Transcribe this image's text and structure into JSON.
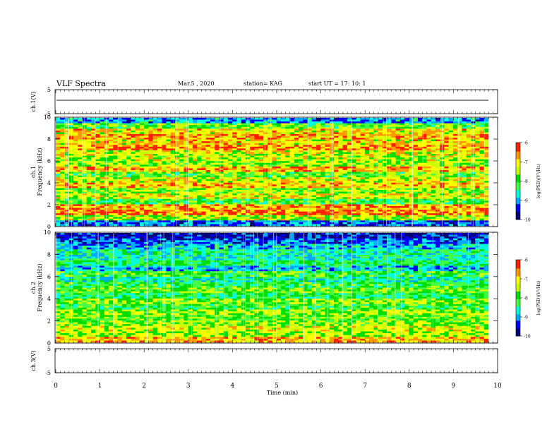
{
  "header": {
    "title": "VLF Spectra",
    "date": "Mar.5 , 2020",
    "station": "station= KAG",
    "start": "start UT = 17: 10: 1"
  },
  "chart_data": [
    {
      "type": "line",
      "panel": "ch1-waveform",
      "ylabel": "ch.1(V)",
      "ylim": [
        -5,
        5
      ],
      "yticks": [
        "5",
        "-5"
      ],
      "series": [
        {
          "values": [
            0,
            0,
            0,
            0,
            0,
            0,
            0,
            0,
            0,
            0
          ]
        }
      ],
      "note_visible": false
    },
    {
      "type": "heatmap",
      "panel": "ch1-spectrogram",
      "ylabel": "ch.1\nFrequency (kHz)",
      "ylim": [
        0,
        10
      ],
      "yticks": [
        "0",
        "2",
        "4",
        "6",
        "8",
        "10"
      ],
      "xlim": [
        0,
        9.8
      ],
      "levels": [
        0.6,
        0.7,
        0.9,
        0.62,
        0.75,
        0.65,
        0.7,
        0.85,
        0.78,
        0.8,
        0.6,
        0.5
      ],
      "band_levels_top_to_bottom": [
        0.25,
        0.55,
        0.75,
        0.82,
        0.75,
        0.85,
        0.7,
        0.65,
        0.6,
        0.8,
        0.55,
        0.7,
        0.78,
        0.6,
        0.72,
        0.5,
        0.82,
        0.88,
        0.65,
        0.2
      ],
      "colorbar": {
        "label": "log(PSD)(V²/Hz)",
        "ticks": [
          "-6",
          "-7",
          "-8",
          "-9",
          "-10"
        ]
      }
    },
    {
      "type": "heatmap",
      "panel": "ch2-spectrogram",
      "ylabel": "ch.2\nFrequency (kHz)",
      "ylim": [
        0,
        10
      ],
      "yticks": [
        "0",
        "2",
        "4",
        "6",
        "8",
        "10"
      ],
      "xlim": [
        0,
        9.8
      ],
      "band_levels_top_to_bottom": [
        0.1,
        0.2,
        0.3,
        0.4,
        0.35,
        0.45,
        0.3,
        0.5,
        0.4,
        0.48,
        0.55,
        0.45,
        0.6,
        0.5,
        0.62,
        0.55,
        0.6,
        0.7,
        0.65,
        0.8
      ],
      "colorbar": {
        "label": "log(PSD)(V²/Hz)",
        "ticks": [
          "-6",
          "-7",
          "-8",
          "-9",
          "-10"
        ]
      }
    },
    {
      "type": "line",
      "panel": "ch3-waveform",
      "ylabel": "ch.3(V)",
      "ylim": [
        -5,
        5
      ],
      "yticks": [
        "5",
        "-5"
      ],
      "xlabel": "Time (min)",
      "xlim": [
        0,
        10
      ],
      "xticks": [
        "0",
        "1",
        "2",
        "3",
        "4",
        "5",
        "6",
        "7",
        "8",
        "9",
        "10"
      ],
      "series": []
    }
  ],
  "palette": [
    "#00007a",
    "#0000ff",
    "#00aaff",
    "#00ffdd",
    "#44ff44",
    "#00dd00",
    "#ccff00",
    "#ffff00",
    "#ff9900",
    "#ff2200",
    "#ffffff"
  ]
}
